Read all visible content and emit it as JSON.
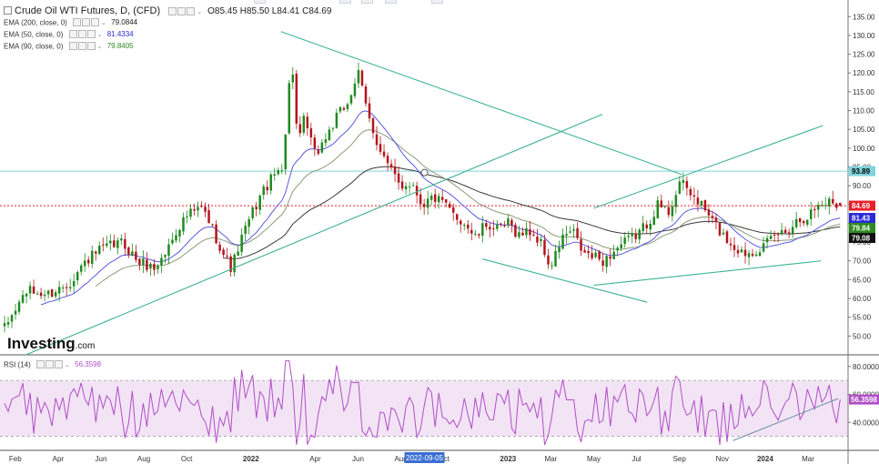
{
  "header": {
    "title": "Crude Oil WTI Futures, D, (CFD)",
    "ohlc": [
      {
        "label": "O",
        "value": "85.45"
      },
      {
        "label": "H",
        "value": "85.50"
      },
      {
        "label": "L",
        "value": "84.41"
      },
      {
        "label": "C",
        "value": "84.69"
      }
    ]
  },
  "indicators": [
    {
      "label": "EMA (200, close, 0)",
      "value": "79.0844",
      "color": "#1a1a1a"
    },
    {
      "label": "EMA (50, close, 0)",
      "value": "81.4334",
      "color": "#2b2bd6"
    },
    {
      "label": "EMA (90, close, 0)",
      "value": "79.8405",
      "color": "#2e8b1e"
    }
  ],
  "rsi": {
    "label": "RSI (14)",
    "value": "56.3598",
    "color": "#b24ec8"
  },
  "watermark": {
    "brand": "Investing",
    "suffix": ".com"
  },
  "price_badges": [
    {
      "value": "93.89",
      "bg": "#7fd3dc",
      "fg": "#000000"
    },
    {
      "value": "84.69",
      "bg": "#e8202a",
      "fg": "#ffffff"
    },
    {
      "value": "81.43",
      "bg": "#2b2bd6",
      "fg": "#ffffff"
    },
    {
      "value": "79.84",
      "bg": "#2e8b1e",
      "fg": "#ffffff"
    },
    {
      "value": "79.08",
      "bg": "#111111",
      "fg": "#ffffff"
    }
  ],
  "rsi_badge": {
    "value": "56.3598",
    "bg": "#b24ec8",
    "fg": "#ffffff"
  },
  "date_badge": "2022-09-05",
  "chart_data": {
    "type": "candlestick",
    "price_axis": {
      "ylim": [
        45,
        137
      ],
      "ticks": [
        "50.00",
        "55.00",
        "60.00",
        "65.00",
        "70.00",
        "75.00",
        "80.00",
        "85.00",
        "90.00",
        "95.00",
        "100.00",
        "105.00",
        "110.00",
        "115.00",
        "120.00",
        "125.00",
        "130.00",
        "135.00"
      ]
    },
    "rsi_axis": {
      "ylim": [
        20,
        87
      ],
      "ticks": [
        "40.0000",
        "60.0000",
        "80.0000"
      ],
      "band": [
        30,
        70
      ]
    },
    "x_axis": {
      "labels": [
        {
          "text": "Feb",
          "t": 0.5
        },
        {
          "text": "Apr",
          "t": 2.5
        },
        {
          "text": "Jun",
          "t": 4.5
        },
        {
          "text": "Aug",
          "t": 6.5
        },
        {
          "text": "Oct",
          "t": 8.5
        },
        {
          "text": "2022",
          "t": 11.5
        },
        {
          "text": "Apr",
          "t": 14.5
        },
        {
          "text": "Jun",
          "t": 16.5
        },
        {
          "text": "Aug",
          "t": 18.5
        },
        {
          "text": "Oct",
          "t": 20.5
        },
        {
          "text": "2023",
          "t": 23.5
        },
        {
          "text": "Mar",
          "t": 25.5
        },
        {
          "text": "May",
          "t": 27.5
        },
        {
          "text": "Jul",
          "t": 29.5
        },
        {
          "text": "Sep",
          "t": 31.5
        },
        {
          "text": "Nov",
          "t": 33.5
        },
        {
          "text": "2024",
          "t": 35.5
        },
        {
          "text": "Mar",
          "t": 37.5
        }
      ],
      "t_range": [
        0,
        39.2
      ]
    },
    "price_anchors": [
      [
        0,
        52
      ],
      [
        0.5,
        57
      ],
      [
        1,
        62
      ],
      [
        2,
        61
      ],
      [
        3,
        64
      ],
      [
        3.8,
        70
      ],
      [
        4.5,
        73
      ],
      [
        5.5,
        75
      ],
      [
        6.2,
        70
      ],
      [
        7,
        68
      ],
      [
        7.5,
        72
      ],
      [
        8,
        78
      ],
      [
        8.5,
        82
      ],
      [
        9.2,
        84
      ],
      [
        9.6,
        80
      ],
      [
        10.2,
        72
      ],
      [
        10.6,
        68
      ],
      [
        11,
        75
      ],
      [
        11.5,
        82
      ],
      [
        12,
        88
      ],
      [
        12.5,
        92
      ],
      [
        13,
        96
      ],
      [
        13.4,
        125
      ],
      [
        13.7,
        100
      ],
      [
        14,
        108
      ],
      [
        14.5,
        98
      ],
      [
        15,
        103
      ],
      [
        15.5,
        108
      ],
      [
        16,
        112
      ],
      [
        16.5,
        120
      ],
      [
        17,
        108
      ],
      [
        17.5,
        100
      ],
      [
        18,
        94
      ],
      [
        18.5,
        90
      ],
      [
        19,
        91
      ],
      [
        19.5,
        85
      ],
      [
        20,
        87
      ],
      [
        20.5,
        85
      ],
      [
        21,
        82
      ],
      [
        21.5,
        80
      ],
      [
        22,
        76
      ],
      [
        22.5,
        80
      ],
      [
        23,
        78
      ],
      [
        23.5,
        80
      ],
      [
        24,
        77
      ],
      [
        24.5,
        78
      ],
      [
        25,
        75
      ],
      [
        25.5,
        68
      ],
      [
        26,
        76
      ],
      [
        26.5,
        78
      ],
      [
        27,
        72
      ],
      [
        27.5,
        71
      ],
      [
        28,
        70
      ],
      [
        28.5,
        73
      ],
      [
        29,
        75
      ],
      [
        29.5,
        77
      ],
      [
        30,
        80
      ],
      [
        30.5,
        85
      ],
      [
        31,
        83
      ],
      [
        31.5,
        91
      ],
      [
        32,
        88
      ],
      [
        32.5,
        85
      ],
      [
        33,
        81
      ],
      [
        33.5,
        77
      ],
      [
        34,
        74
      ],
      [
        34.5,
        72
      ],
      [
        35,
        73
      ],
      [
        35.5,
        74
      ],
      [
        36,
        77
      ],
      [
        36.5,
        78
      ],
      [
        37,
        81
      ],
      [
        37.5,
        82
      ],
      [
        38,
        85
      ],
      [
        38.5,
        86
      ],
      [
        39,
        84.69
      ]
    ],
    "last": {
      "open": 85.45,
      "high": 85.5,
      "low": 84.41,
      "close": 84.69
    },
    "ema200_end": 79.0844,
    "ema50_end": 81.4334,
    "ema90_end": 79.8405,
    "rsi_end": 56.3598,
    "horizontal_lines": [
      {
        "value": 93.89,
        "color": "#7fd3dc",
        "style": "solid"
      },
      {
        "value": 84.69,
        "color": "#e8202a",
        "style": "dotted"
      }
    ],
    "trendlines": [
      {
        "t1": 12.9,
        "v1": 131,
        "t2": 31.6,
        "v2": 93
      },
      {
        "t1": 1.0,
        "v1": 45,
        "t2": 27.9,
        "v2": 109
      },
      {
        "t1": 27.5,
        "v1": 84,
        "t2": 38.2,
        "v2": 106
      },
      {
        "t1": 22.3,
        "v1": 70.5,
        "t2": 30.0,
        "v2": 59
      },
      {
        "t1": 27.5,
        "v1": 63.5,
        "t2": 38.1,
        "v2": 70
      }
    ],
    "rsi_trendline": {
      "t1": 34.0,
      "v1": 27,
      "t2": 38.9,
      "v2": 57
    },
    "marker": {
      "t": 19.6,
      "v": 93.5
    }
  }
}
